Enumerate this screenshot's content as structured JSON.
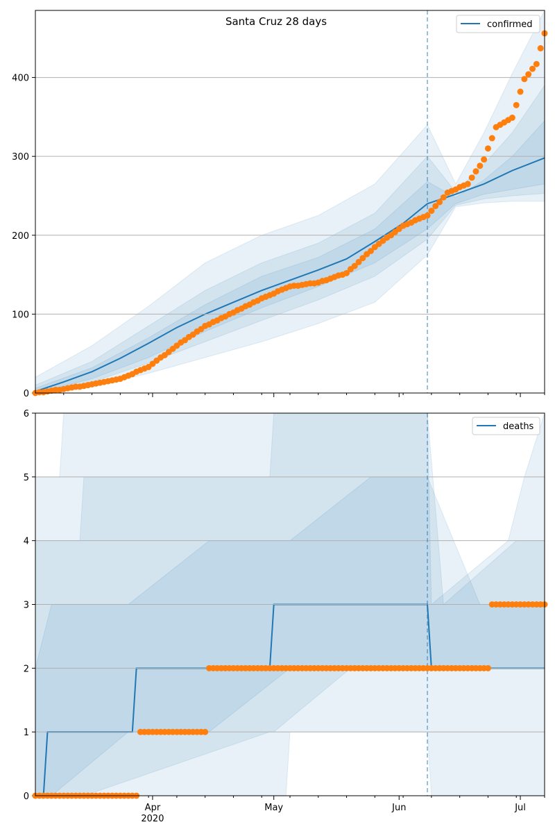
{
  "chart_data": [
    {
      "type": "line",
      "title": "Santa Cruz 28 days",
      "ylim": [
        0,
        485
      ],
      "yticks": [
        0,
        100,
        200,
        300,
        400
      ],
      "grid": "y",
      "legend_position": "top-right",
      "legend": [
        "confirmed"
      ],
      "forecast_start": "2020-06-08",
      "xlim": [
        "2020-03-03",
        "2020-07-07"
      ],
      "series": [
        {
          "name": "confirmed",
          "kind": "model-mean-line",
          "x": [
            "2020-03-03",
            "2020-03-10",
            "2020-03-17",
            "2020-03-24",
            "2020-03-31",
            "2020-04-07",
            "2020-04-14",
            "2020-04-21",
            "2020-04-28",
            "2020-05-05",
            "2020-05-12",
            "2020-05-19",
            "2020-05-26",
            "2020-06-02",
            "2020-06-08",
            "2020-06-15",
            "2020-06-22",
            "2020-06-29",
            "2020-07-07"
          ],
          "values": [
            2,
            14,
            27,
            44,
            63,
            83,
            100,
            115,
            130,
            143,
            156,
            170,
            192,
            215,
            240,
            252,
            265,
            282,
            298
          ]
        },
        {
          "kind": "observed-points",
          "x": [
            "2020-03-03",
            "2020-03-10",
            "2020-03-17",
            "2020-03-24",
            "2020-03-31",
            "2020-04-07",
            "2020-04-14",
            "2020-04-21",
            "2020-04-28",
            "2020-05-05",
            "2020-05-12",
            "2020-05-19",
            "2020-05-26",
            "2020-06-02",
            "2020-06-08",
            "2020-06-13",
            "2020-06-18",
            "2020-06-22",
            "2020-06-25",
            "2020-06-29",
            "2020-07-02",
            "2020-07-05",
            "2020-07-07"
          ],
          "values": [
            0,
            5,
            11,
            18,
            33,
            60,
            85,
            102,
            120,
            135,
            140,
            152,
            185,
            212,
            225,
            254,
            265,
            296,
            337,
            349,
            398,
            417,
            456
          ]
        }
      ],
      "bands": [
        {
          "x": [
            "2020-03-03",
            "2020-03-17",
            "2020-03-31",
            "2020-04-14",
            "2020-04-28",
            "2020-05-12",
            "2020-05-26",
            "2020-06-08",
            "2020-06-15",
            "2020-06-22",
            "2020-06-29",
            "2020-07-07"
          ],
          "lower": [
            0,
            8,
            25,
            45,
            65,
            88,
            115,
            175,
            236,
            241,
            243,
            243
          ],
          "upper": [
            20,
            60,
            110,
            165,
            200,
            225,
            265,
            340,
            265,
            330,
            405,
            485
          ]
        },
        {
          "x": [
            "2020-03-03",
            "2020-03-17",
            "2020-03-31",
            "2020-04-14",
            "2020-04-28",
            "2020-05-12",
            "2020-05-26",
            "2020-06-08",
            "2020-06-15",
            "2020-06-22",
            "2020-06-29",
            "2020-07-07"
          ],
          "lower": [
            0,
            14,
            38,
            65,
            92,
            118,
            148,
            195,
            238,
            246,
            250,
            253
          ],
          "upper": [
            10,
            40,
            85,
            130,
            165,
            190,
            228,
            300,
            255,
            290,
            330,
            390
          ]
        },
        {
          "x": [
            "2020-03-03",
            "2020-03-17",
            "2020-03-31",
            "2020-04-14",
            "2020-04-28",
            "2020-05-12",
            "2020-05-26",
            "2020-06-08",
            "2020-06-15",
            "2020-06-22",
            "2020-06-29",
            "2020-07-07"
          ],
          "lower": [
            0,
            18,
            45,
            78,
            108,
            135,
            165,
            208,
            240,
            252,
            258,
            265
          ],
          "upper": [
            6,
            32,
            70,
            112,
            148,
            172,
            208,
            268,
            248,
            270,
            300,
            345
          ]
        }
      ],
      "xticks": [
        {
          "x": "2020-04-01",
          "label": "Apr",
          "sublabel": "2020"
        },
        {
          "x": "2020-05-01",
          "label": "May"
        },
        {
          "x": "2020-06-01",
          "label": "Jun"
        },
        {
          "x": "2020-07-01",
          "label": "Jul"
        }
      ]
    },
    {
      "type": "line",
      "title": "",
      "ylim": [
        0,
        6
      ],
      "yticks": [
        0,
        1,
        2,
        3,
        4,
        5,
        6
      ],
      "grid": "y",
      "legend_position": "top-right",
      "legend": [
        "deaths"
      ],
      "forecast_start": "2020-06-08",
      "xlim": [
        "2020-03-03",
        "2020-07-07"
      ],
      "series": [
        {
          "name": "deaths",
          "kind": "model-mean-step",
          "x": [
            "2020-03-03",
            "2020-03-05",
            "2020-03-06",
            "2020-03-27",
            "2020-03-28",
            "2020-04-30",
            "2020-05-01",
            "2020-06-08",
            "2020-06-09",
            "2020-07-07"
          ],
          "values": [
            0,
            0,
            1,
            1,
            2,
            2,
            3,
            3,
            2,
            2
          ]
        },
        {
          "kind": "observed-steps",
          "x": [
            "2020-03-03",
            "2020-03-29",
            "2020-04-15",
            "2020-06-24",
            "2020-07-07"
          ],
          "values": [
            0,
            1,
            2,
            3,
            3
          ]
        }
      ],
      "bands": [
        {
          "x": [
            "2020-03-03",
            "2020-03-09",
            "2020-03-10",
            "2020-05-04",
            "2020-05-05",
            "2020-06-08",
            "2020-06-09",
            "2020-06-28",
            "2020-07-02",
            "2020-07-07"
          ],
          "lower": [
            0,
            0,
            0,
            0,
            1,
            1,
            0,
            0,
            0,
            0
          ],
          "upper": [
            5,
            5,
            6,
            6,
            6,
            6,
            3,
            4,
            5,
            6
          ]
        },
        {
          "x": [
            "2020-03-03",
            "2020-03-14",
            "2020-03-15",
            "2020-04-30",
            "2020-05-01",
            "2020-05-20",
            "2020-06-08",
            "2020-06-12",
            "2020-06-30",
            "2020-07-07"
          ],
          "lower": [
            0,
            0,
            0,
            1,
            1,
            2,
            2,
            2,
            2,
            2
          ],
          "upper": [
            4,
            4,
            5,
            5,
            6,
            6,
            6,
            3,
            4,
            4
          ]
        },
        {
          "x": [
            "2020-03-03",
            "2020-03-07",
            "2020-03-26",
            "2020-04-15",
            "2020-05-05",
            "2020-05-25",
            "2020-06-08",
            "2020-06-21",
            "2020-07-07"
          ],
          "lower": [
            0,
            0,
            1,
            1,
            2,
            2,
            2,
            2,
            2
          ],
          "upper": [
            2,
            3,
            3,
            4,
            4,
            5,
            5,
            3,
            3
          ]
        }
      ],
      "xticks": [
        {
          "x": "2020-04-01",
          "label": "Apr",
          "sublabel": "2020"
        },
        {
          "x": "2020-05-01",
          "label": "May"
        },
        {
          "x": "2020-06-01",
          "label": "Jun"
        },
        {
          "x": "2020-07-01",
          "label": "Jul"
        }
      ]
    }
  ],
  "colors": {
    "line": "#1f77b4",
    "points": "#ff7f0e",
    "band": "#1f77b4",
    "grid": "#b0b0b0"
  }
}
